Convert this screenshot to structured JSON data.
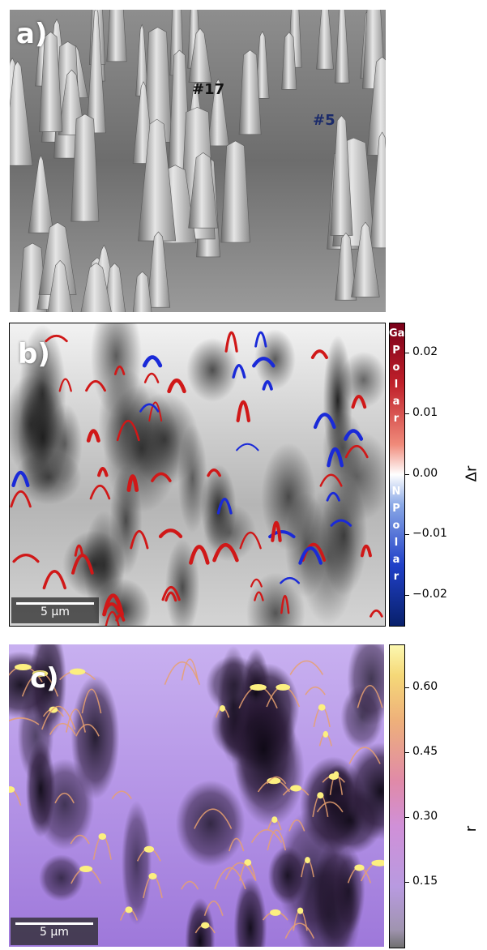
{
  "panel_a": {
    "label": "a)",
    "annotations": [
      "#17",
      "#5"
    ],
    "annotation_colors": [
      "#111111",
      "#1a2a6a"
    ]
  },
  "panel_b": {
    "label": "b)",
    "scalebar": "5 µm",
    "colorbar": {
      "title": "Δr",
      "ticks": [
        "0.02",
        "0.01",
        "0.00",
        "−0.01",
        "−0.02"
      ],
      "tick_values": [
        0.02,
        0.01,
        0.0,
        -0.01,
        -0.02
      ],
      "range": [
        -0.025,
        0.025
      ],
      "upper_text": [
        "Ga",
        "P",
        "o",
        "l",
        "a",
        "r"
      ],
      "lower_text": [
        "N",
        "P",
        "o",
        "l",
        "a",
        "r"
      ],
      "colors": {
        "high": "#b2182b",
        "mid": "#ffffff",
        "low": "#08306b"
      }
    }
  },
  "panel_c": {
    "label": "c)",
    "scalebar": "5 µm",
    "colorbar": {
      "title": "r",
      "ticks": [
        "0.60",
        "0.45",
        "0.30",
        "0.15"
      ],
      "tick_values": [
        0.6,
        0.45,
        0.3,
        0.15
      ],
      "range": [
        0.0,
        0.7
      ],
      "colors": {
        "high": "#fcf090",
        "mid": "#e28aa6",
        "low": "#b89ae0"
      }
    }
  }
}
